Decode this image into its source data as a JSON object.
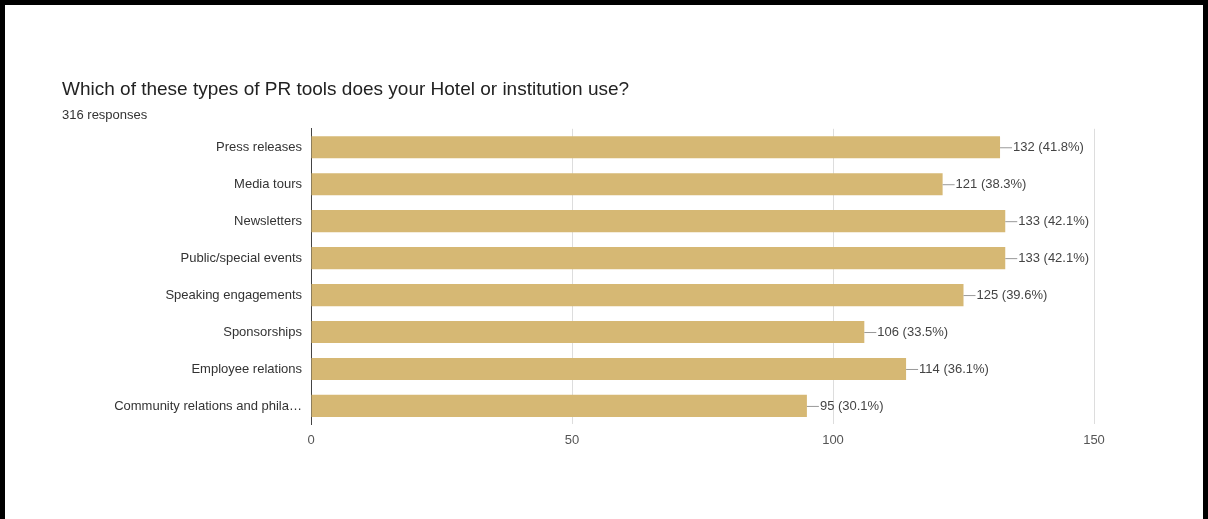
{
  "chart_data": {
    "type": "bar",
    "orientation": "horizontal",
    "title": "Which of these types of PR tools does your Hotel or institution use?",
    "subtitle": "316 responses",
    "categories": [
      "Press releases",
      "Media tours",
      "Newsletters",
      "Public/special events",
      "Speaking engagements",
      "Sponsorships",
      "Employee relations",
      "Community relations and phila…"
    ],
    "values": [
      132,
      121,
      133,
      133,
      125,
      106,
      114,
      95
    ],
    "value_labels": [
      "132 (41.8%)",
      "121 (38.3%)",
      "133 (42.1%)",
      "133 (42.1%)",
      "125 (39.6%)",
      "106 (33.5%)",
      "114 (36.1%)",
      "95 (30.1%)"
    ],
    "color": "#d6b874",
    "xlim": [
      0,
      150
    ],
    "xticks": [
      0,
      50,
      100,
      150
    ],
    "grid": "x",
    "legend": false
  }
}
